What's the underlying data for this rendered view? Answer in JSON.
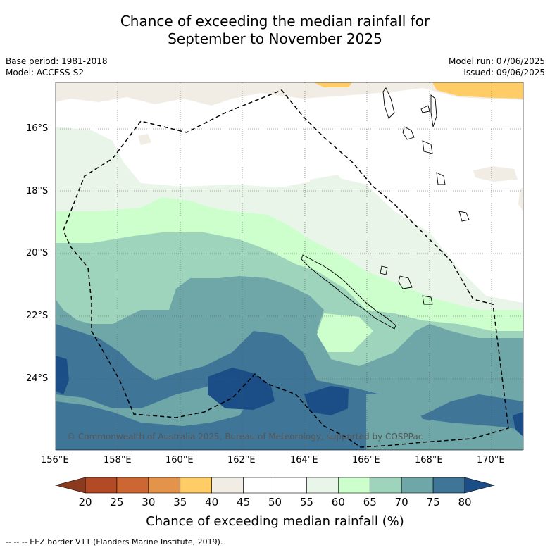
{
  "title": {
    "line1": "Chance of exceeding the median rainfall for",
    "line2": "September to November 2025"
  },
  "meta": {
    "base_period": "Base period: 1981-2018",
    "model": "Model: ACCESS-S2",
    "model_run": "Model run: 07/06/2025",
    "issued": "Issued: 09/06/2025"
  },
  "axes": {
    "lat_labels": [
      "16°S",
      "18°S",
      "20°S",
      "22°S",
      "24°S"
    ],
    "lon_labels": [
      "156°E",
      "158°E",
      "160°E",
      "162°E",
      "164°E",
      "166°E",
      "168°E",
      "170°E"
    ]
  },
  "copyright": "© Commonwealth of Australia 2025, Bureau of Meteorology, supported by COSPPac",
  "colorbar": {
    "ticks": [
      "20",
      "25",
      "30",
      "35",
      "40",
      "45",
      "50",
      "55",
      "60",
      "65",
      "70",
      "75",
      "80"
    ],
    "colors": [
      "#8c3a1e",
      "#b14a25",
      "#cc6633",
      "#e3944a",
      "#ffcc66",
      "#f1ede4",
      "#ffffff",
      "#ffffff",
      "#eaf5e9",
      "#ccffcc",
      "#9fd4bc",
      "#6fa7a8",
      "#3f7698",
      "#1b4e86"
    ],
    "title": "Chance of exceeding median rainfall (%)"
  },
  "footer": "--  --  -- EEZ border V11 (Flanders Marine Institute, 2019).",
  "palette": {
    "c40_45": "#f1ede4",
    "c35_40": "#ffcc66",
    "c55_60": "#eaf5e9",
    "c60_65": "#ccffcc",
    "c65_70": "#9fd4bc",
    "c70_75": "#6fa7a8",
    "c75_80": "#3f7698",
    "c80p": "#1b4e86"
  }
}
